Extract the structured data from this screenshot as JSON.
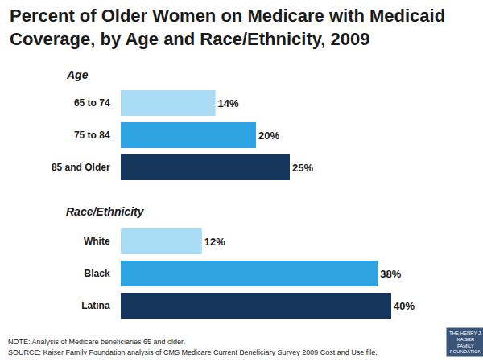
{
  "title": "Percent of Older Women on Medicare with Medicaid Coverage, by Age and Race/Ethnicity, 2009",
  "chart_data": [
    {
      "type": "bar",
      "title": "Age",
      "orientation": "horizontal",
      "categories": [
        "65 to 74",
        "75 to 84",
        "85 and Older"
      ],
      "values": [
        14,
        20,
        25
      ],
      "value_labels": [
        "14%",
        "20%",
        "25%"
      ],
      "colors": [
        "#a9dbf4",
        "#2ea3e1",
        "#14365d"
      ],
      "data_labels": true,
      "tick_labels": "y",
      "grid": false,
      "xlim": [
        0,
        50
      ]
    },
    {
      "type": "bar",
      "title": "Race/Ethnicity",
      "orientation": "horizontal",
      "categories": [
        "White",
        "Black",
        "Latina"
      ],
      "values": [
        12,
        38,
        40
      ],
      "value_labels": [
        "12%",
        "38%",
        "40%"
      ],
      "colors": [
        "#a9dbf4",
        "#2ea3e1",
        "#14365d"
      ],
      "data_labels": true,
      "tick_labels": "y",
      "grid": false,
      "xlim": [
        0,
        50
      ]
    }
  ],
  "note": "NOTE: Analysis of Medicare beneficiaries 65 and older.",
  "source": "SOURCE: Kaiser Family Foundation analysis of CMS Medicare Current Beneficiary Survey 2009 Cost and Use file.",
  "logo": [
    "THE HENRY J.",
    "KAISER",
    "FAMILY",
    "FOUNDATION"
  ]
}
